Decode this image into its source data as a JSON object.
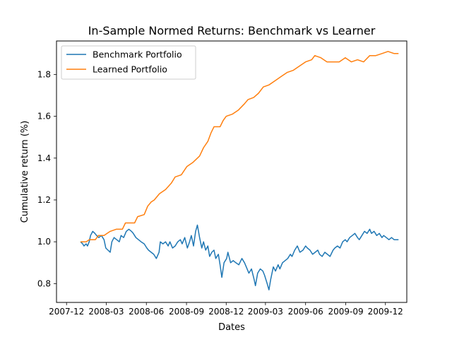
{
  "chart_data": {
    "type": "line",
    "title": "In-Sample Normed Returns: Benchmark vs Learner",
    "xlabel": "Dates",
    "ylabel": "Cumulative return (%)",
    "x_range": [
      "2007-11-08",
      "2010-01-19"
    ],
    "ylim": [
      0.71,
      1.96
    ],
    "x_ticks": [
      {
        "label": "2007-12",
        "date": "2007-12-01"
      },
      {
        "label": "2008-03",
        "date": "2008-03-01"
      },
      {
        "label": "2008-06",
        "date": "2008-06-01"
      },
      {
        "label": "2008-09",
        "date": "2008-09-01"
      },
      {
        "label": "2008-12",
        "date": "2008-12-01"
      },
      {
        "label": "2009-03",
        "date": "2009-03-01"
      },
      {
        "label": "2009-06",
        "date": "2009-06-01"
      },
      {
        "label": "2009-09",
        "date": "2009-09-01"
      },
      {
        "label": "2009-12",
        "date": "2009-12-01"
      }
    ],
    "y_ticks": [
      0.8,
      1.0,
      1.2,
      1.4,
      1.6,
      1.8
    ],
    "y_tick_labels": [
      "0.8",
      "1.0",
      "1.2",
      "1.4",
      "1.6",
      "1.8"
    ],
    "grid": false,
    "legend": "upper-left",
    "series": [
      {
        "name": "Benchmark Portfolio",
        "color": "#1f77b4",
        "points": [
          [
            "2008-01-02",
            1.0
          ],
          [
            "2008-01-07",
            0.99
          ],
          [
            "2008-01-10",
            0.98
          ],
          [
            "2008-01-15",
            0.99
          ],
          [
            "2008-01-18",
            0.98
          ],
          [
            "2008-01-22",
            1.0
          ],
          [
            "2008-01-25",
            1.03
          ],
          [
            "2008-01-30",
            1.05
          ],
          [
            "2008-02-04",
            1.04
          ],
          [
            "2008-02-08",
            1.03
          ],
          [
            "2008-02-13",
            1.02
          ],
          [
            "2008-02-19",
            1.03
          ],
          [
            "2008-02-25",
            1.01
          ],
          [
            "2008-02-29",
            0.97
          ],
          [
            "2008-03-05",
            0.96
          ],
          [
            "2008-03-10",
            0.95
          ],
          [
            "2008-03-14",
            1.0
          ],
          [
            "2008-03-19",
            1.02
          ],
          [
            "2008-03-25",
            1.01
          ],
          [
            "2008-03-31",
            1.0
          ],
          [
            "2008-04-04",
            1.03
          ],
          [
            "2008-04-10",
            1.02
          ],
          [
            "2008-04-16",
            1.05
          ],
          [
            "2008-04-22",
            1.06
          ],
          [
            "2008-04-28",
            1.05
          ],
          [
            "2008-05-02",
            1.04
          ],
          [
            "2008-05-08",
            1.02
          ],
          [
            "2008-05-14",
            1.01
          ],
          [
            "2008-05-20",
            1.0
          ],
          [
            "2008-05-27",
            0.99
          ],
          [
            "2008-06-02",
            0.97
          ],
          [
            "2008-06-06",
            0.96
          ],
          [
            "2008-06-12",
            0.95
          ],
          [
            "2008-06-18",
            0.94
          ],
          [
            "2008-06-24",
            0.92
          ],
          [
            "2008-06-30",
            0.95
          ],
          [
            "2008-07-03",
            1.0
          ],
          [
            "2008-07-09",
            0.99
          ],
          [
            "2008-07-15",
            1.0
          ],
          [
            "2008-07-21",
            0.98
          ],
          [
            "2008-07-25",
            1.0
          ],
          [
            "2008-07-31",
            0.97
          ],
          [
            "2008-08-06",
            0.98
          ],
          [
            "2008-08-12",
            1.0
          ],
          [
            "2008-08-18",
            1.01
          ],
          [
            "2008-08-22",
            0.99
          ],
          [
            "2008-08-28",
            1.02
          ],
          [
            "2008-09-03",
            0.97
          ],
          [
            "2008-09-08",
            1.0
          ],
          [
            "2008-09-12",
            1.03
          ],
          [
            "2008-09-17",
            0.98
          ],
          [
            "2008-09-22",
            1.05
          ],
          [
            "2008-09-26",
            1.08
          ],
          [
            "2008-10-01",
            1.02
          ],
          [
            "2008-10-06",
            0.97
          ],
          [
            "2008-10-10",
            1.0
          ],
          [
            "2008-10-15",
            0.96
          ],
          [
            "2008-10-20",
            0.98
          ],
          [
            "2008-10-24",
            0.93
          ],
          [
            "2008-10-29",
            0.95
          ],
          [
            "2008-11-03",
            0.96
          ],
          [
            "2008-11-07",
            0.92
          ],
          [
            "2008-11-13",
            0.94
          ],
          [
            "2008-11-17",
            0.89
          ],
          [
            "2008-11-21",
            0.83
          ],
          [
            "2008-11-26",
            0.9
          ],
          [
            "2008-12-02",
            0.92
          ],
          [
            "2008-12-05",
            0.95
          ],
          [
            "2008-12-11",
            0.9
          ],
          [
            "2008-12-17",
            0.91
          ],
          [
            "2008-12-23",
            0.9
          ],
          [
            "2008-12-30",
            0.89
          ],
          [
            "2009-01-06",
            0.92
          ],
          [
            "2009-01-12",
            0.9
          ],
          [
            "2009-01-16",
            0.88
          ],
          [
            "2009-01-22",
            0.85
          ],
          [
            "2009-01-28",
            0.87
          ],
          [
            "2009-02-03",
            0.82
          ],
          [
            "2009-02-06",
            0.79
          ],
          [
            "2009-02-11",
            0.85
          ],
          [
            "2009-02-17",
            0.87
          ],
          [
            "2009-02-23",
            0.86
          ],
          [
            "2009-02-27",
            0.84
          ],
          [
            "2009-03-05",
            0.8
          ],
          [
            "2009-03-09",
            0.77
          ],
          [
            "2009-03-13",
            0.82
          ],
          [
            "2009-03-19",
            0.88
          ],
          [
            "2009-03-24",
            0.86
          ],
          [
            "2009-03-30",
            0.89
          ],
          [
            "2009-04-03",
            0.87
          ],
          [
            "2009-04-09",
            0.9
          ],
          [
            "2009-04-15",
            0.91
          ],
          [
            "2009-04-21",
            0.92
          ],
          [
            "2009-04-27",
            0.94
          ],
          [
            "2009-05-01",
            0.93
          ],
          [
            "2009-05-07",
            0.96
          ],
          [
            "2009-05-13",
            0.98
          ],
          [
            "2009-05-19",
            0.95
          ],
          [
            "2009-05-26",
            0.96
          ],
          [
            "2009-06-01",
            0.98
          ],
          [
            "2009-06-05",
            0.97
          ],
          [
            "2009-06-11",
            0.96
          ],
          [
            "2009-06-17",
            0.94
          ],
          [
            "2009-06-23",
            0.95
          ],
          [
            "2009-06-29",
            0.96
          ],
          [
            "2009-07-03",
            0.94
          ],
          [
            "2009-07-09",
            0.93
          ],
          [
            "2009-07-15",
            0.95
          ],
          [
            "2009-07-21",
            0.94
          ],
          [
            "2009-07-27",
            0.93
          ],
          [
            "2009-08-03",
            0.96
          ],
          [
            "2009-08-07",
            0.97
          ],
          [
            "2009-08-13",
            0.98
          ],
          [
            "2009-08-19",
            0.97
          ],
          [
            "2009-08-25",
            1.0
          ],
          [
            "2009-08-31",
            1.01
          ],
          [
            "2009-09-04",
            1.0
          ],
          [
            "2009-09-10",
            1.02
          ],
          [
            "2009-09-16",
            1.03
          ],
          [
            "2009-09-22",
            1.04
          ],
          [
            "2009-09-28",
            1.02
          ],
          [
            "2009-10-02",
            1.01
          ],
          [
            "2009-10-08",
            1.03
          ],
          [
            "2009-10-14",
            1.05
          ],
          [
            "2009-10-20",
            1.04
          ],
          [
            "2009-10-26",
            1.06
          ],
          [
            "2009-10-30",
            1.04
          ],
          [
            "2009-11-05",
            1.05
          ],
          [
            "2009-11-11",
            1.03
          ],
          [
            "2009-11-17",
            1.04
          ],
          [
            "2009-11-23",
            1.02
          ],
          [
            "2009-11-27",
            1.03
          ],
          [
            "2009-12-03",
            1.02
          ],
          [
            "2009-12-09",
            1.01
          ],
          [
            "2009-12-15",
            1.02
          ],
          [
            "2009-12-21",
            1.01
          ],
          [
            "2009-12-28",
            1.01
          ],
          [
            "2009-12-31",
            1.01
          ]
        ]
      },
      {
        "name": "Learned Portfolio",
        "color": "#ff7f0e",
        "points": [
          [
            "2008-01-02",
            1.0
          ],
          [
            "2008-01-15",
            1.0
          ],
          [
            "2008-01-22",
            1.01
          ],
          [
            "2008-02-05",
            1.01
          ],
          [
            "2008-02-12",
            1.03
          ],
          [
            "2008-02-25",
            1.03
          ],
          [
            "2008-03-03",
            1.04
          ],
          [
            "2008-03-10",
            1.05
          ],
          [
            "2008-03-24",
            1.06
          ],
          [
            "2008-04-07",
            1.06
          ],
          [
            "2008-04-14",
            1.09
          ],
          [
            "2008-05-05",
            1.09
          ],
          [
            "2008-05-12",
            1.12
          ],
          [
            "2008-05-27",
            1.13
          ],
          [
            "2008-06-04",
            1.17
          ],
          [
            "2008-06-12",
            1.19
          ],
          [
            "2008-06-19",
            1.2
          ],
          [
            "2008-07-01",
            1.23
          ],
          [
            "2008-07-15",
            1.25
          ],
          [
            "2008-07-28",
            1.28
          ],
          [
            "2008-08-06",
            1.31
          ],
          [
            "2008-08-20",
            1.32
          ],
          [
            "2008-09-02",
            1.36
          ],
          [
            "2008-09-16",
            1.38
          ],
          [
            "2008-10-01",
            1.41
          ],
          [
            "2008-10-10",
            1.45
          ],
          [
            "2008-10-20",
            1.48
          ],
          [
            "2008-10-27",
            1.52
          ],
          [
            "2008-11-03",
            1.55
          ],
          [
            "2008-11-17",
            1.55
          ],
          [
            "2008-11-24",
            1.58
          ],
          [
            "2008-12-01",
            1.6
          ],
          [
            "2008-12-15",
            1.61
          ],
          [
            "2008-12-29",
            1.63
          ],
          [
            "2009-01-12",
            1.66
          ],
          [
            "2009-01-20",
            1.68
          ],
          [
            "2009-02-02",
            1.69
          ],
          [
            "2009-02-13",
            1.71
          ],
          [
            "2009-02-24",
            1.74
          ],
          [
            "2009-03-09",
            1.75
          ],
          [
            "2009-03-23",
            1.77
          ],
          [
            "2009-04-06",
            1.79
          ],
          [
            "2009-04-20",
            1.81
          ],
          [
            "2009-05-04",
            1.82
          ],
          [
            "2009-05-18",
            1.84
          ],
          [
            "2009-06-01",
            1.86
          ],
          [
            "2009-06-15",
            1.87
          ],
          [
            "2009-06-22",
            1.89
          ],
          [
            "2009-07-06",
            1.88
          ],
          [
            "2009-07-20",
            1.86
          ],
          [
            "2009-08-03",
            1.86
          ],
          [
            "2009-08-17",
            1.86
          ],
          [
            "2009-08-31",
            1.88
          ],
          [
            "2009-09-14",
            1.86
          ],
          [
            "2009-09-28",
            1.87
          ],
          [
            "2009-10-12",
            1.86
          ],
          [
            "2009-10-26",
            1.89
          ],
          [
            "2009-11-09",
            1.89
          ],
          [
            "2009-11-23",
            1.9
          ],
          [
            "2009-12-07",
            1.91
          ],
          [
            "2009-12-21",
            1.9
          ],
          [
            "2009-12-31",
            1.9
          ]
        ]
      }
    ]
  }
}
